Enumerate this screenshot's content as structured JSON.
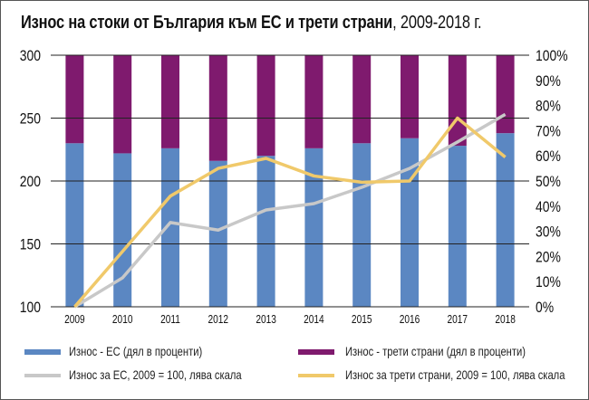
{
  "chart_data": {
    "type": "bar+line",
    "title_bold": "Износ на стоки от България към ЕС и трети страни",
    "title_rest": ", 2009-2018 г.",
    "categories": [
      "2009",
      "2010",
      "2011",
      "2012",
      "2013",
      "2014",
      "2015",
      "2016",
      "2017",
      "2018"
    ],
    "left_axis": {
      "min": 100,
      "max": 300,
      "ticks": [
        "100",
        "150",
        "200",
        "250",
        "300"
      ]
    },
    "right_axis": {
      "min": 0,
      "max": 100,
      "ticks": [
        "0%",
        "10%",
        "20%",
        "30%",
        "40%",
        "50%",
        "60%",
        "70%",
        "80%",
        "90%",
        "100%"
      ]
    },
    "grid": true,
    "legend_placement": "bottom",
    "series": [
      {
        "name": "Износ - ЕС (дял в проценти)",
        "kind": "stacked-bar",
        "axis": "right",
        "color": "#5b87c2",
        "values": [
          65,
          61,
          63,
          58,
          60,
          63,
          65,
          67,
          64,
          69
        ]
      },
      {
        "name": "Износ - трети страни (дял в проценти)",
        "kind": "stacked-bar",
        "axis": "right",
        "color": "#7f1a6e",
        "values": [
          35,
          39,
          37,
          42,
          40,
          37,
          35,
          33,
          36,
          31
        ]
      },
      {
        "name": "Износ за ЕС, 2009 = 100, лява скала",
        "kind": "line",
        "axis": "left",
        "color": "#c8c8c8",
        "values": [
          100,
          123,
          167,
          161,
          177,
          182,
          195,
          210,
          231,
          253
        ]
      },
      {
        "name": "Износ за трети страни, 2009 = 100, лява скала",
        "kind": "line",
        "axis": "left",
        "color": "#f0c96a",
        "values": [
          100,
          144,
          188,
          210,
          218,
          204,
          199,
          200,
          250,
          219
        ]
      }
    ]
  }
}
